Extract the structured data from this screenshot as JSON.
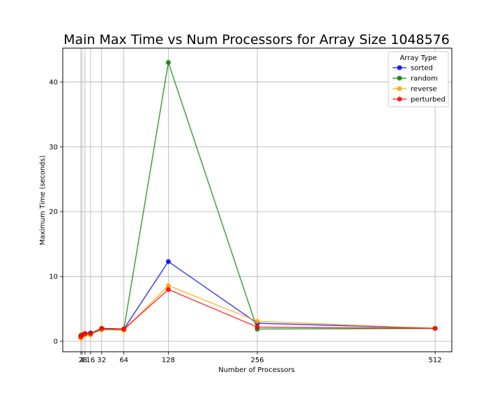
{
  "chart_data": {
    "type": "line",
    "title": "Main Max Time vs Num Processors for Array Size 1048576",
    "xlabel": "Number of Processors",
    "ylabel": "Maximum Time (seconds)",
    "xlim": [
      -24,
      536
    ],
    "ylim": [
      -1.6,
      45.2
    ],
    "x_ticks": [
      2,
      4,
      8,
      16,
      32,
      64,
      128,
      256,
      512
    ],
    "x_tick_labels": [
      "2",
      "4",
      "8",
      "16",
      "32",
      "64",
      "128",
      "256",
      "512"
    ],
    "y_ticks": [
      0,
      10,
      20,
      30,
      40
    ],
    "y_tick_labels": [
      "0",
      "10",
      "20",
      "30",
      "40"
    ],
    "grid": true,
    "legend": {
      "title": "Array Type",
      "placement": "top-right"
    },
    "x": [
      2,
      4,
      8,
      16,
      32,
      64,
      128,
      256,
      512
    ],
    "series": [
      {
        "name": "sorted",
        "color": "#0000ff",
        "values": [
          0.8,
          1.0,
          1.2,
          1.3,
          1.8,
          1.9,
          12.3,
          2.8,
          2.0
        ]
      },
      {
        "name": "random",
        "color": "#008000",
        "values": [
          0.9,
          1.0,
          1.2,
          1.2,
          2.0,
          1.9,
          43.0,
          1.9,
          2.0
        ]
      },
      {
        "name": "reverse",
        "color": "#ffa500",
        "values": [
          0.5,
          0.8,
          1.0,
          1.0,
          1.8,
          1.7,
          8.6,
          3.1,
          2.0
        ]
      },
      {
        "name": "perturbed",
        "color": "#ff0000",
        "values": [
          0.7,
          1.0,
          1.2,
          1.2,
          2.0,
          1.9,
          8.0,
          2.2,
          2.0
        ]
      }
    ]
  }
}
